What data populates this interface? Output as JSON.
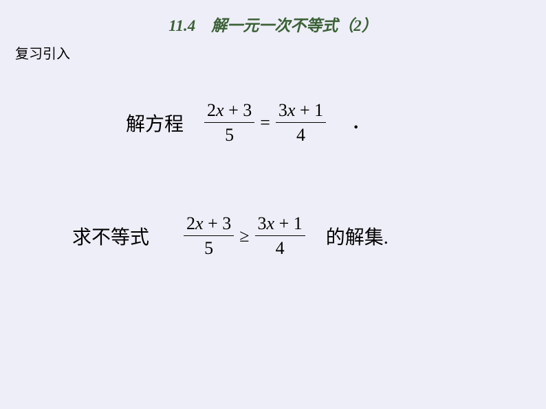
{
  "title": "11.4　解一元一次不等式（2）",
  "subtitle": "复习引入",
  "equation": {
    "label": "解方程",
    "left_numerator_html": "2<span class=\"math-var\">x</span> + 3",
    "left_denominator": "5",
    "operator": "=",
    "right_numerator_html": "3<span class=\"math-var\">x</span> + 1",
    "right_denominator": "4",
    "trailing": "."
  },
  "inequality": {
    "label": "求不等式",
    "left_numerator_html": "2<span class=\"math-var\">x</span> + 3",
    "left_denominator": "5",
    "operator": "≥",
    "right_numerator_html": "3<span class=\"math-var\">x</span> + 1",
    "right_denominator": "4",
    "trailing": "的解集."
  },
  "colors": {
    "background": "#eeeef8",
    "title_color": "#3b6136",
    "text_color": "#000000"
  }
}
